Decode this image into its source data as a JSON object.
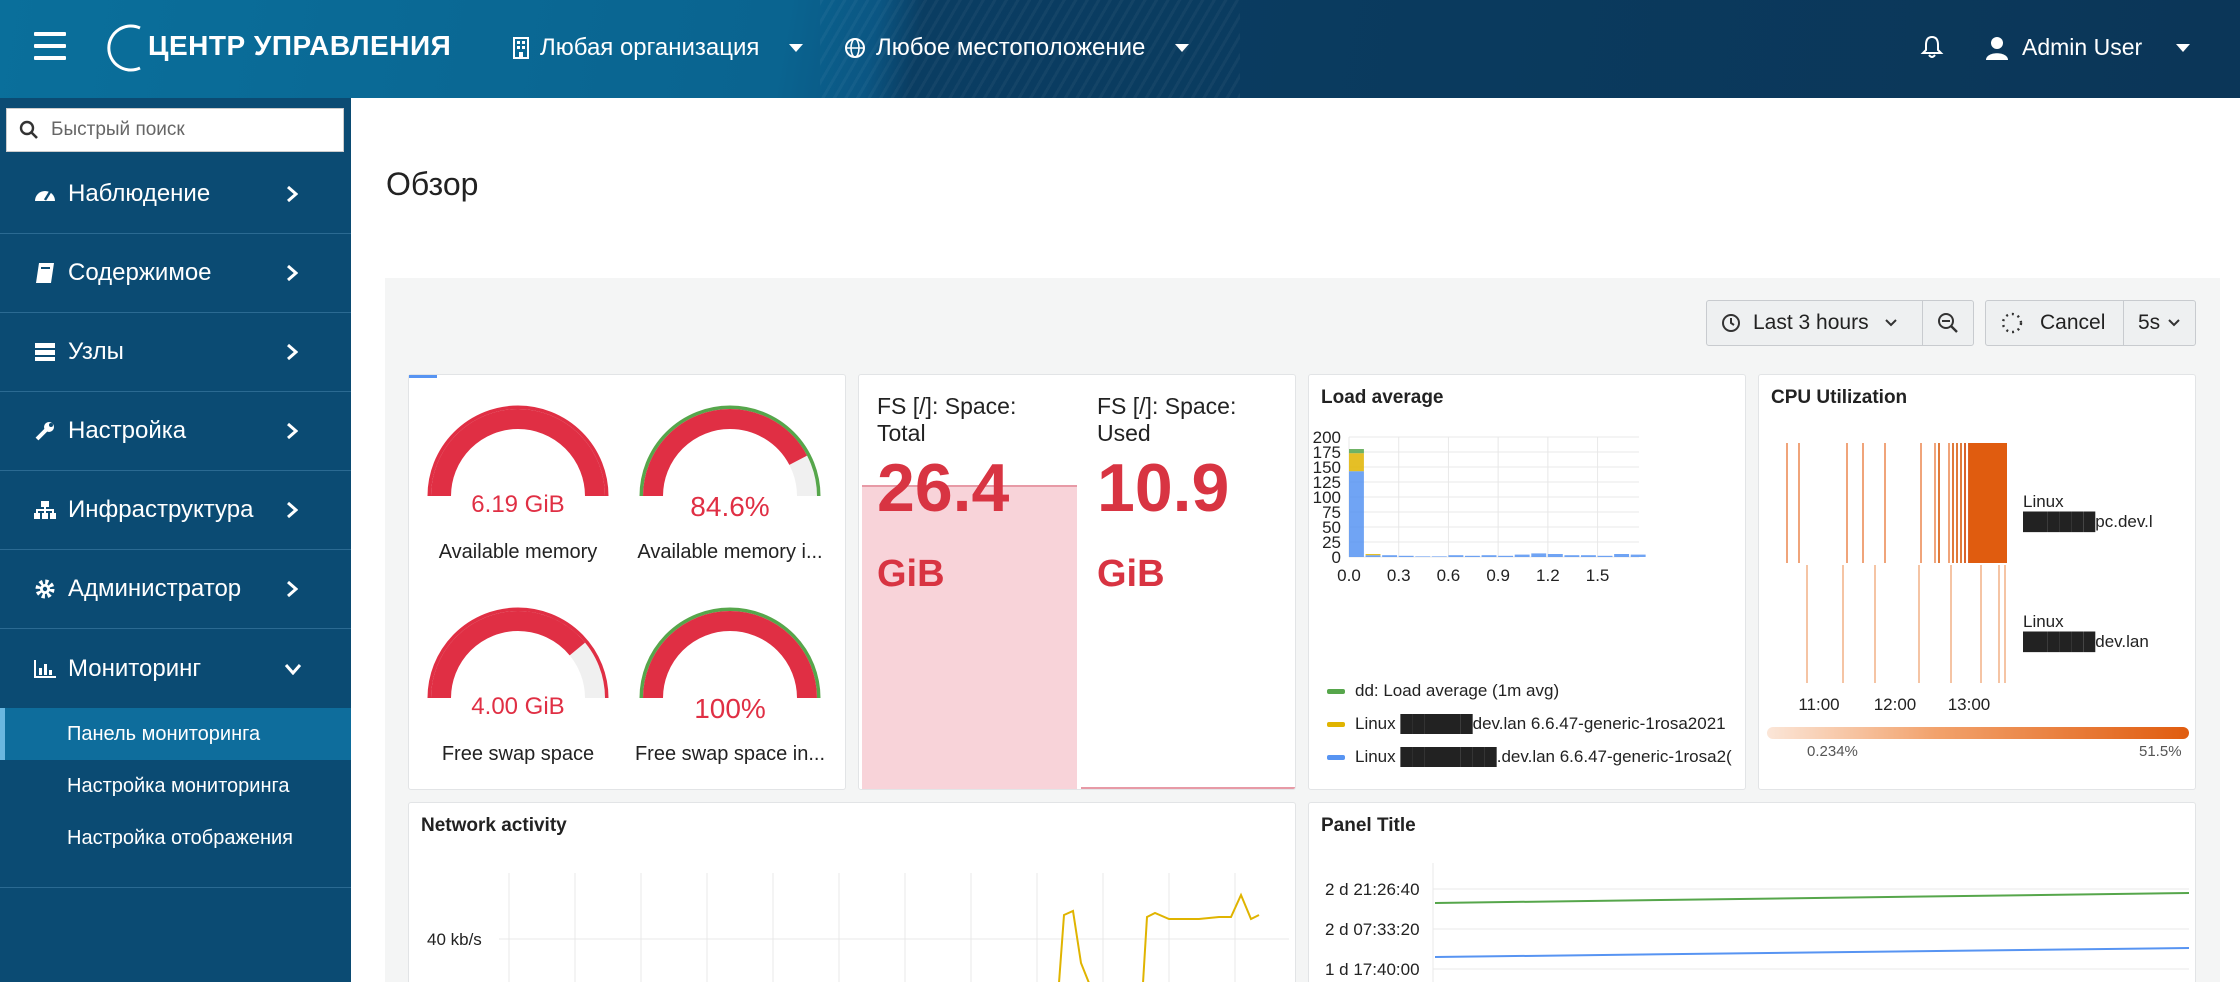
{
  "header": {
    "brand": "ЦЕНТР УПРАВЛЕНИЯ",
    "organization": "Любая организация",
    "location": "Любое местоположение",
    "user": "Admin User"
  },
  "sidebar": {
    "search_placeholder": "Быстрый поиск",
    "items": [
      {
        "label": "Наблюдение",
        "icon": "dashboard-gauge-icon"
      },
      {
        "label": "Содержимое",
        "icon": "book-icon"
      },
      {
        "label": "Узлы",
        "icon": "server-icon"
      },
      {
        "label": "Настройка",
        "icon": "wrench-icon"
      },
      {
        "label": "Инфраструктура",
        "icon": "sitemap-icon"
      },
      {
        "label": "Администратор",
        "icon": "gear-icon"
      },
      {
        "label": "Мониторинг",
        "icon": "bar-chart-icon"
      }
    ],
    "subitems": [
      "Панель мониторинга",
      "Настройка мониторинга",
      "Настройка отображения"
    ]
  },
  "page": {
    "title": "Обзор"
  },
  "toolbar": {
    "time_range": "Last 3 hours",
    "cancel": "Cancel",
    "refresh": "5s"
  },
  "colors": {
    "red": "#e02f44",
    "green": "#56a64b",
    "yellow": "#e0b400",
    "blue": "#5794f2",
    "orange": "#e05c0f"
  },
  "gauges": [
    {
      "value_text": "6.19 GiB",
      "label": "Available memory",
      "fraction": 1.0,
      "band": "#e02f44"
    },
    {
      "value_text": "84.6%",
      "label": "Available memory i...",
      "fraction": 0.846,
      "band": "#56a64b"
    },
    {
      "value_text": "4.00 GiB",
      "label": "Free swap space",
      "fraction": 0.78,
      "band": "#e02f44"
    },
    {
      "value_text": "100%",
      "label": "Free swap space in...",
      "fraction": 1.0,
      "band": "#56a64b"
    }
  ],
  "stats": [
    {
      "title": "FS [/]: Space: Total",
      "value": "26.4",
      "unit": "GiB"
    },
    {
      "title": "FS [/]: Space: Used",
      "value": "10.9",
      "unit": "GiB"
    }
  ],
  "load_avg": {
    "title": "Load average",
    "y_ticks": [
      "200",
      "175",
      "150",
      "125",
      "100",
      "75",
      "50",
      "25",
      "0"
    ],
    "x_ticks": [
      "0.0",
      "0.3",
      "0.6",
      "0.9",
      "1.2",
      "1.5"
    ],
    "legend": [
      {
        "label": "dd: Load average (1m avg)",
        "color": "#56a64b"
      },
      {
        "label": "Linux ██████dev.lan 6.6.47-generic-1rosa2021",
        "color": "#e0b400"
      },
      {
        "label": "Linux ████████.dev.lan 6.6.47-generic-1rosa2(",
        "color": "#5794f2"
      }
    ]
  },
  "chart_data": [
    {
      "type": "bar",
      "title": "Load average",
      "x": [
        0.0,
        0.1,
        0.2,
        0.3,
        0.4,
        0.5,
        0.6,
        0.7,
        0.8,
        0.9,
        1.0,
        1.1,
        1.2,
        1.3,
        1.4,
        1.5,
        1.6,
        1.7
      ],
      "series": [
        {
          "name": "dd: Load average (1m avg)",
          "values": [
            7,
            0,
            0,
            0,
            0,
            0,
            0,
            0,
            0,
            0,
            0,
            0,
            0,
            0,
            0,
            0,
            0,
            0
          ]
        },
        {
          "name": "Linux ██████dev.lan 6.6.47-generic-1rosa2021",
          "values": [
            30,
            2,
            0,
            0,
            0,
            0,
            0,
            0,
            0,
            0,
            0,
            0,
            0,
            0,
            0,
            0,
            0,
            0
          ]
        },
        {
          "name": "Linux ████████.dev.lan 6.6.47-generic-1rosa2(",
          "values": [
            143,
            3,
            3,
            2,
            1,
            1,
            3,
            2,
            3,
            2,
            4,
            6,
            5,
            3,
            3,
            2,
            5,
            4
          ]
        }
      ],
      "ylim": [
        0,
        200
      ],
      "xlim": [
        0,
        1.75
      ]
    },
    {
      "type": "heatmap",
      "title": "CPU Utilization",
      "x_ticks": [
        "11:00",
        "12:00",
        "13:00"
      ],
      "rows": [
        "Linux ██████pc.dev.l",
        "Linux ██████dev.lan"
      ],
      "scale_min": "0.234%",
      "scale_max": "51.5%"
    },
    {
      "type": "line",
      "title": "Network activity",
      "y_ticks": [
        "40 kb/s"
      ]
    },
    {
      "type": "line",
      "title": "Panel Title",
      "y_ticks": [
        "2 d 21:26:40",
        "2 d 07:33:20",
        "1 d 17:40:00"
      ]
    }
  ],
  "cpu": {
    "title": "CPU Utilization",
    "x_ticks": [
      "11:00",
      "12:00",
      "13:00"
    ],
    "rows": [
      "Linux ██████pc.dev.l",
      "Linux ██████dev.lan"
    ],
    "scale_min": "0.234%",
    "scale_max": "51.5%"
  },
  "network": {
    "title": "Network activity",
    "y_tick": "40 kb/s"
  },
  "panel5": {
    "title": "Panel Title",
    "y_ticks": [
      "2 d 21:26:40",
      "2 d 07:33:20",
      "1 d 17:40:00"
    ]
  }
}
